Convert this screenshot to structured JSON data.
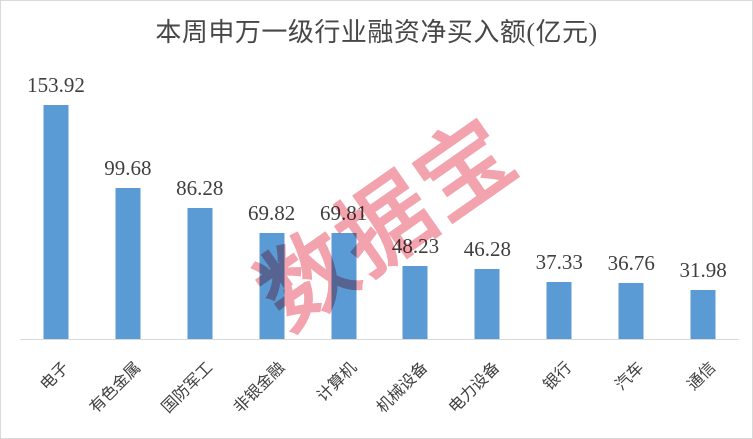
{
  "chart_data": {
    "type": "bar",
    "title": "本周申万一级行业融资净买入额(亿元)",
    "categories": [
      "电子",
      "有色金属",
      "国防军工",
      "非银金融",
      "计算机",
      "机械设备",
      "电力设备",
      "银行",
      "汽车",
      "通信"
    ],
    "values": [
      153.92,
      99.68,
      86.28,
      69.82,
      69.81,
      48.23,
      46.28,
      37.33,
      36.76,
      31.98
    ],
    "value_labels": [
      "153.92",
      "99.68",
      "86.28",
      "69.82",
      "69.81",
      "48.23",
      "46.28",
      "37.33",
      "36.76",
      "31.98"
    ],
    "xlabel": "",
    "ylabel": "",
    "ylim": [
      0,
      160
    ],
    "grid": false,
    "legend": "none",
    "category_label_rotation_deg": -45
  },
  "watermark": {
    "text": "数据宝"
  },
  "colors": {
    "bar": "#5B9BD5",
    "title_text": "#474747",
    "label_text": "#3F3F3F",
    "axis_line": "#D9D9D9",
    "frame_border": "#D9D9D9",
    "watermark_pink": "#F2A3AD"
  }
}
